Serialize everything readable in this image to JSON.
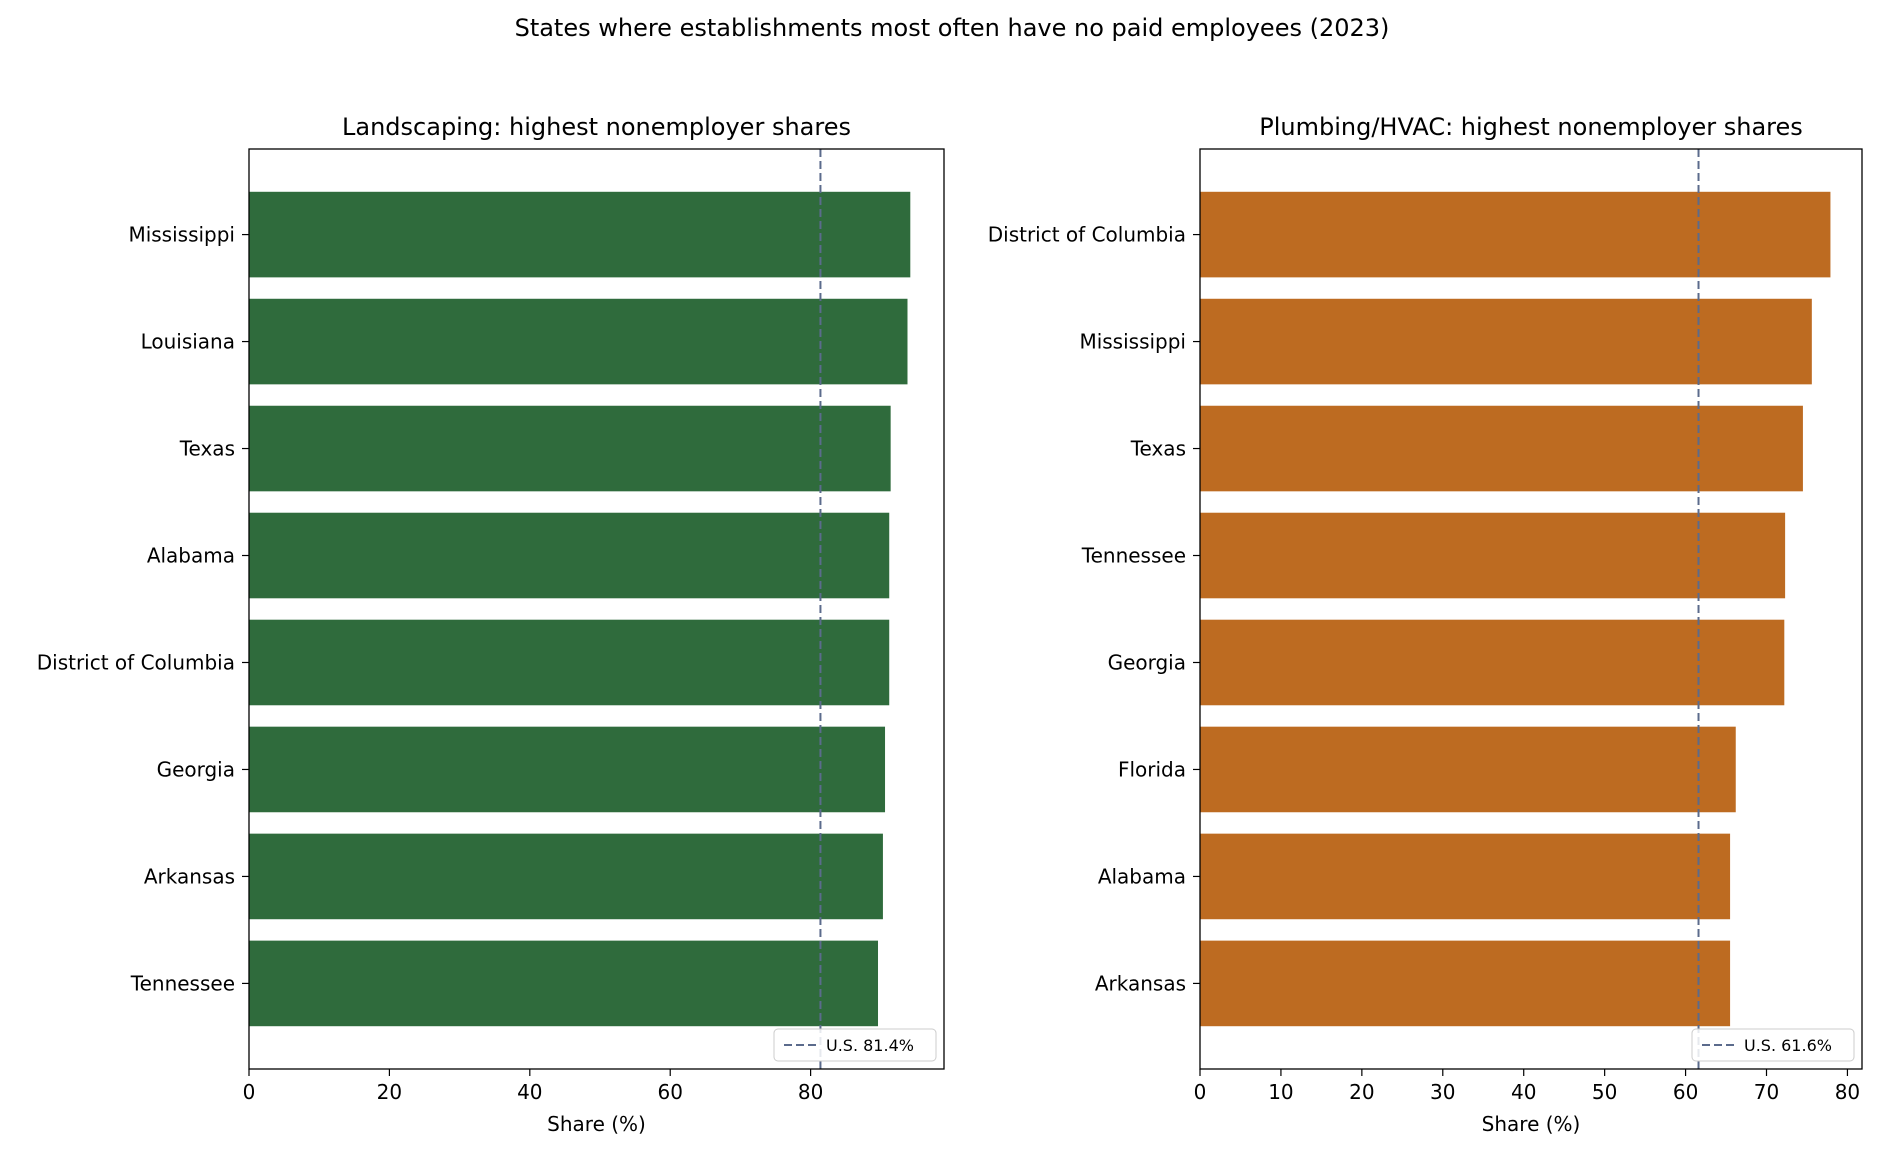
{
  "figure": {
    "title": "States where establishments most often have no paid employees (2023)"
  },
  "chart_data": [
    {
      "type": "bar",
      "orientation": "horizontal",
      "title": "Landscaping: highest nonemployer shares",
      "xlabel": "Share (%)",
      "ylabel": "",
      "xlim": [
        0,
        99
      ],
      "xticks": [
        0,
        20,
        40,
        60,
        80
      ],
      "categories": [
        "Mississippi",
        "Louisiana",
        "Texas",
        "Alabama",
        "District of Columbia",
        "Georgia",
        "Arkansas",
        "Tennessee"
      ],
      "values": [
        94.2,
        93.8,
        91.4,
        91.2,
        91.2,
        90.6,
        90.3,
        89.6
      ],
      "bar_color": "#2f6b3c",
      "reference_line": {
        "value": 81.4,
        "label": "U.S. 81.4%",
        "color": "#5b6b8c",
        "style": "dashed"
      },
      "legend_position": "lower-right",
      "grid": false
    },
    {
      "type": "bar",
      "orientation": "horizontal",
      "title": "Plumbing/HVAC: highest nonemployer shares",
      "xlabel": "Share (%)",
      "ylabel": "",
      "xlim": [
        0,
        81.8
      ],
      "xticks": [
        0,
        10,
        20,
        30,
        40,
        50,
        60,
        70,
        80
      ],
      "categories": [
        "District of Columbia",
        "Mississippi",
        "Texas",
        "Tennessee",
        "Georgia",
        "Florida",
        "Alabama",
        "Arkansas"
      ],
      "values": [
        77.9,
        75.6,
        74.5,
        72.3,
        72.2,
        66.2,
        65.5,
        65.5
      ],
      "bar_color": "#bd6b21",
      "reference_line": {
        "value": 61.6,
        "label": "U.S. 61.6%",
        "color": "#5b6b8c",
        "style": "dashed"
      },
      "legend_position": "lower-right",
      "grid": false
    }
  ]
}
